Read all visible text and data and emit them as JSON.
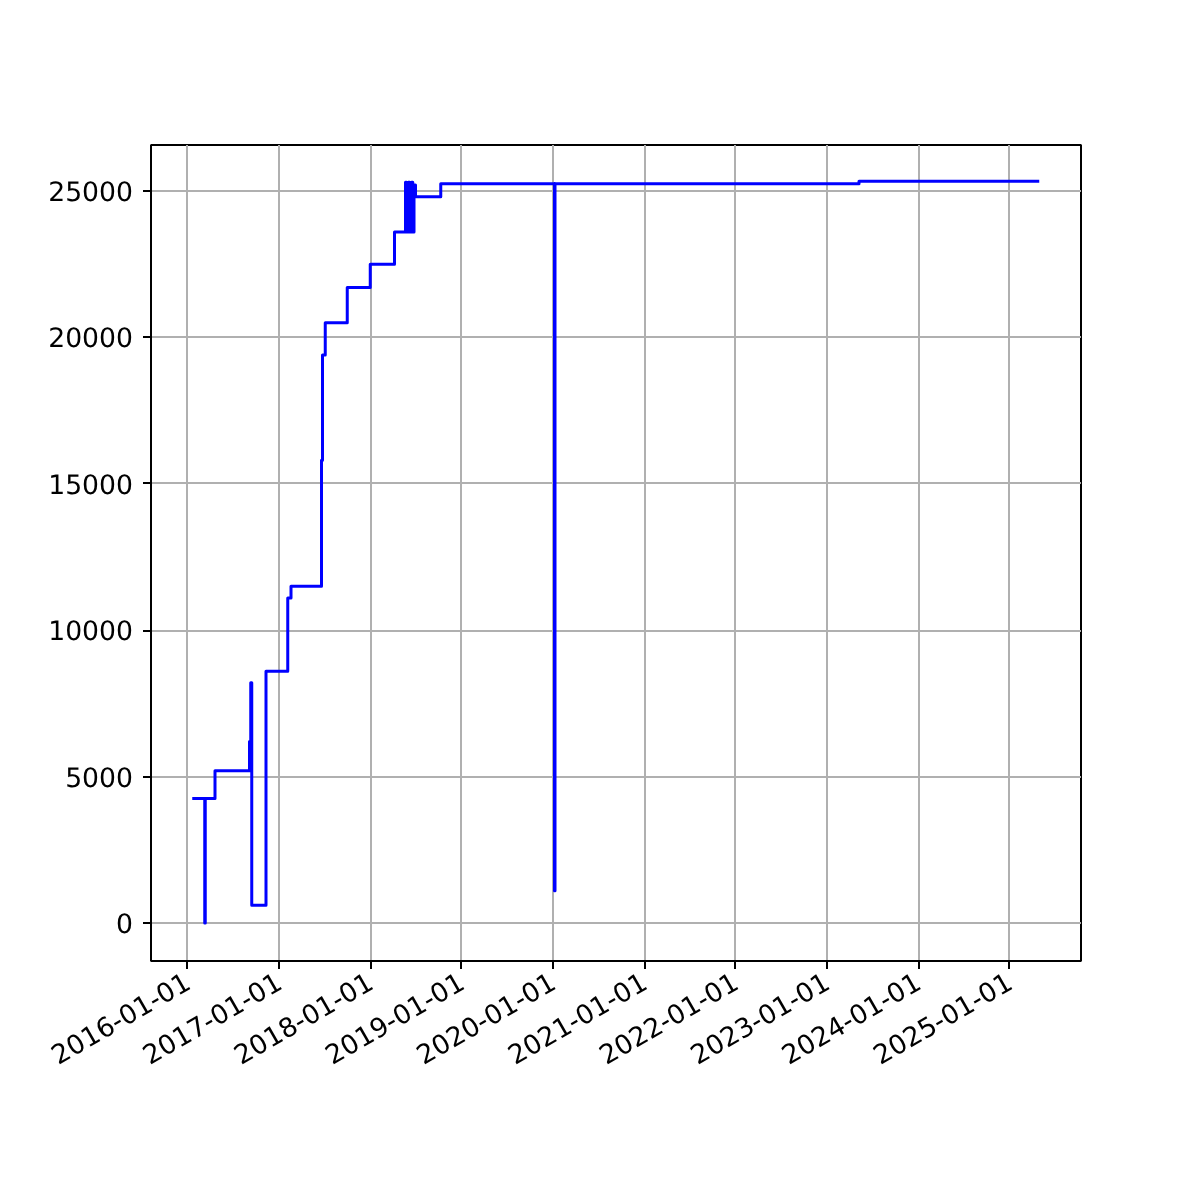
{
  "chart_data": {
    "type": "step",
    "x": [
      "2016-01-20",
      "2016-03-10",
      "2016-03-12",
      "2016-04-20",
      "2016-09-05",
      "2016-09-10",
      "2016-09-14",
      "2016-11-10",
      "2017-02-05",
      "2017-02-18",
      "2017-06-20",
      "2017-06-24",
      "2017-07-05",
      "2017-10-01",
      "2018-01-01",
      "2018-04-08",
      "2018-05-22",
      "2018-05-26",
      "2018-06-02",
      "2018-06-08",
      "2018-06-15",
      "2018-06-20",
      "2018-06-25",
      "2018-07-01",
      "2018-10-10",
      "2020-01-08",
      "2020-01-10",
      "2023-05-10",
      "2025-04-30"
    ],
    "series": [
      {
        "color": "#0000ff",
        "values": [
          4250,
          0,
          4250,
          5200,
          6200,
          8200,
          600,
          8600,
          11100,
          11500,
          15800,
          19400,
          20500,
          21700,
          22500,
          23600,
          25300,
          23600,
          25300,
          23600,
          25300,
          23600,
          25200,
          24800,
          25250,
          1100,
          25250,
          25330,
          25330
        ]
      }
    ],
    "xlim": [
      "2015-08-08",
      "2025-10-14"
    ],
    "xticks": [
      "2016-01-01",
      "2017-01-01",
      "2018-01-01",
      "2019-01-01",
      "2020-01-01",
      "2021-01-01",
      "2022-01-01",
      "2023-01-01",
      "2024-01-01",
      "2025-01-01"
    ],
    "ylim": [
      -1300,
      26570
    ],
    "yticks": [
      0,
      5000,
      10000,
      15000,
      20000,
      25000
    ],
    "grid": true
  }
}
